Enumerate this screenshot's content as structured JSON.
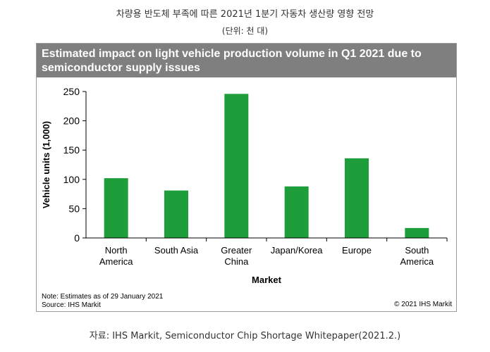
{
  "page": {
    "title_korean": "차량용 반도체 부족에 따른 2021년 1분기 자동차 생산량 영향 전망",
    "unit_korean": "(단위: 천 대)",
    "caption": "자료: IHS Markit, Semiconductor Chip Shortage Whitepaper(2021.2.)"
  },
  "chart_data": {
    "type": "bar",
    "title_line1": "Estimated impact on light vehicle production volume in Q1 2021 due to",
    "title_line2": "semiconductor supply issues",
    "categories": [
      [
        "North",
        "America"
      ],
      [
        "South Asia"
      ],
      [
        "Greater",
        "China"
      ],
      [
        "Japan/Korea"
      ],
      [
        "Europe"
      ],
      [
        "South",
        "America"
      ]
    ],
    "values": [
      102,
      81,
      246,
      88,
      136,
      17
    ],
    "xlabel": "Market",
    "ylabel": "Vehicle units (1,000)",
    "ylim": [
      0,
      250
    ],
    "yticks": [
      0,
      50,
      100,
      150,
      200,
      250
    ],
    "grid": false,
    "bar_color": "#1e9e3a",
    "note_line1": "Note: Estimates as of 29 January 2021",
    "note_line2": "Source: IHS Markit",
    "copyright": "© 2021 IHS Markit"
  }
}
